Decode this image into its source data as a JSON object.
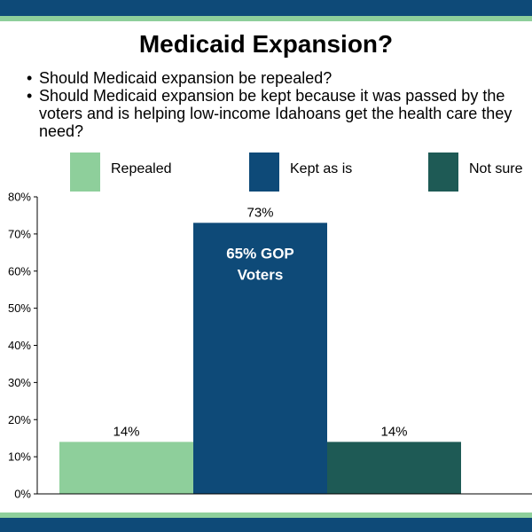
{
  "title": "Medicaid Expansion?",
  "bullets": [
    "Should Medicaid expansion be repealed?",
    "Should Medicaid expansion be kept because it was passed by the voters and is helping low-income Idahoans get the health care they need?"
  ],
  "bullet_glyph": "•",
  "colors": {
    "band": "#0e4a78",
    "stripe": "#8ecf9b"
  },
  "chart_data": {
    "type": "bar",
    "categories": [
      "Repealed",
      "Kept as is",
      "Not sure"
    ],
    "values": [
      14,
      73,
      14
    ],
    "value_labels": [
      "14%",
      "73%",
      "14%"
    ],
    "colors": [
      "#8ecf9b",
      "#0e4a78",
      "#1e5a55"
    ],
    "ylim": [
      0,
      80
    ],
    "yticks": [
      0,
      10,
      20,
      30,
      40,
      50,
      60,
      70,
      80
    ],
    "ytick_labels": [
      "0%",
      "10%",
      "20%",
      "30%",
      "40%",
      "50%",
      "60%",
      "70%",
      "80%"
    ],
    "annotations": [
      {
        "category": "Kept as is",
        "lines": [
          "65% GOP",
          "Voters"
        ]
      }
    ],
    "legend_position": "top",
    "grid": false
  }
}
